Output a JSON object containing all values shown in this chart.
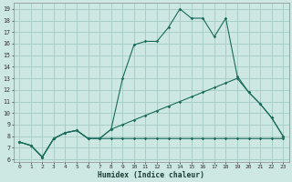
{
  "xlabel": "Humidex (Indice chaleur)",
  "bg_color": "#cde8e3",
  "grid_color": "#a8cfc8",
  "line_color": "#1a6b5a",
  "xlim_min": -0.5,
  "xlim_max": 23.5,
  "ylim_min": 5.8,
  "ylim_max": 19.5,
  "yticks": [
    6,
    7,
    8,
    9,
    10,
    11,
    12,
    13,
    14,
    15,
    16,
    17,
    18,
    19
  ],
  "xticks": [
    0,
    1,
    2,
    3,
    4,
    5,
    6,
    7,
    8,
    9,
    10,
    11,
    12,
    13,
    14,
    15,
    16,
    17,
    18,
    19,
    20,
    21,
    22,
    23
  ],
  "line1_x": [
    0,
    1,
    2,
    3,
    4,
    5,
    6,
    7,
    8,
    9,
    10,
    11,
    12,
    13,
    14,
    15,
    16,
    17,
    18,
    19,
    20,
    21,
    22,
    23
  ],
  "line1_y": [
    7.5,
    7.2,
    6.2,
    7.8,
    8.3,
    8.5,
    7.8,
    7.8,
    7.8,
    7.8,
    7.8,
    7.8,
    7.8,
    7.8,
    7.8,
    7.8,
    7.8,
    7.8,
    7.8,
    7.8,
    7.8,
    7.8,
    7.8,
    7.8
  ],
  "line2_x": [
    0,
    1,
    2,
    3,
    4,
    5,
    6,
    7,
    8,
    9,
    10,
    11,
    12,
    13,
    14,
    15,
    16,
    17,
    18,
    19,
    20,
    21,
    22,
    23
  ],
  "line2_y": [
    7.5,
    7.2,
    6.2,
    7.8,
    8.3,
    8.5,
    7.8,
    7.8,
    8.6,
    13.0,
    15.9,
    16.2,
    16.2,
    17.4,
    19.0,
    18.2,
    18.2,
    16.6,
    18.2,
    13.2,
    11.8,
    10.8,
    9.6,
    8.0
  ],
  "line3_x": [
    0,
    1,
    2,
    3,
    4,
    5,
    6,
    7,
    8,
    9,
    10,
    11,
    12,
    13,
    14,
    15,
    16,
    17,
    18,
    19,
    20,
    21,
    22,
    23
  ],
  "line3_y": [
    7.5,
    7.2,
    6.2,
    7.8,
    8.3,
    8.5,
    7.8,
    7.8,
    8.6,
    9.0,
    9.4,
    9.8,
    10.2,
    10.6,
    11.0,
    11.4,
    11.8,
    12.2,
    12.6,
    13.0,
    11.8,
    10.8,
    9.6,
    8.0
  ]
}
